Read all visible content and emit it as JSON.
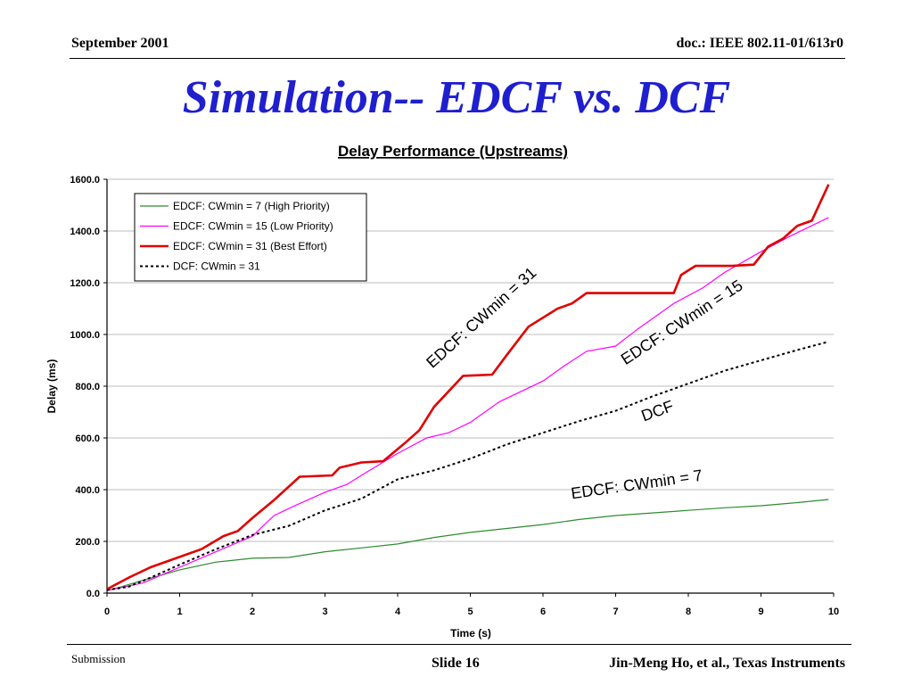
{
  "header": {
    "date": "September 2001",
    "doc": "doc.: IEEE 802.11-01/613r0"
  },
  "slide_title": "Simulation-- EDCF vs. DCF",
  "footer": {
    "submission": "Submission",
    "slide": "Slide 16",
    "author": "Jin-Meng Ho, et al., Texas Instruments"
  },
  "chart_data": {
    "type": "line",
    "title": "Delay Performance (Upstreams)",
    "xlabel": "Time (s)",
    "ylabel": "Delay (ms)",
    "xlim": [
      0,
      10
    ],
    "ylim": [
      0,
      1600
    ],
    "xticks": [
      "0",
      "1",
      "2",
      "3",
      "4",
      "5",
      "6",
      "7",
      "8",
      "9",
      "10"
    ],
    "yticks": [
      "0.0",
      "200.0",
      "400.0",
      "600.0",
      "800.0",
      "1000.0",
      "1200.0",
      "1400.0",
      "1600.0"
    ],
    "grid": "horizontal",
    "legend_position": "top-left",
    "series": [
      {
        "name": "EDCF: CWmin = 7 (High Priority)",
        "color": "#2e8b2e",
        "style": "solid",
        "points": [
          [
            0,
            10
          ],
          [
            0.2,
            25
          ],
          [
            0.5,
            50
          ],
          [
            1,
            90
          ],
          [
            1.5,
            120
          ],
          [
            2,
            135
          ],
          [
            2.5,
            138
          ],
          [
            3,
            160
          ],
          [
            3.5,
            175
          ],
          [
            4,
            190
          ],
          [
            4.5,
            215
          ],
          [
            5,
            235
          ],
          [
            5.5,
            250
          ],
          [
            6,
            265
          ],
          [
            6.5,
            285
          ],
          [
            7,
            300
          ],
          [
            7.5,
            310
          ],
          [
            8,
            320
          ],
          [
            8.5,
            330
          ],
          [
            9,
            338
          ],
          [
            9.5,
            350
          ],
          [
            9.93,
            362
          ]
        ]
      },
      {
        "name": "EDCF: CWmin = 15 (Low Priority)",
        "color": "#ff00ff",
        "style": "solid",
        "points": [
          [
            0,
            10
          ],
          [
            0.5,
            40
          ],
          [
            1,
            100
          ],
          [
            1.5,
            160
          ],
          [
            2,
            220
          ],
          [
            2.3,
            300
          ],
          [
            2.6,
            340
          ],
          [
            3,
            390
          ],
          [
            3.3,
            420
          ],
          [
            3.5,
            455
          ],
          [
            4,
            540
          ],
          [
            4.4,
            600
          ],
          [
            4.7,
            620
          ],
          [
            5,
            660
          ],
          [
            5.4,
            740
          ],
          [
            6,
            820
          ],
          [
            6.3,
            880
          ],
          [
            6.6,
            935
          ],
          [
            7,
            955
          ],
          [
            7.3,
            1020
          ],
          [
            7.8,
            1120
          ],
          [
            8.2,
            1180
          ],
          [
            8.5,
            1240
          ],
          [
            9,
            1320
          ],
          [
            9.4,
            1380
          ],
          [
            9.93,
            1452
          ]
        ]
      },
      {
        "name": "EDCF: CWmin = 31 (Best Effort)",
        "color": "#e00000",
        "style": "thick",
        "points": [
          [
            0,
            15
          ],
          [
            0.3,
            60
          ],
          [
            0.6,
            100
          ],
          [
            1,
            140
          ],
          [
            1.3,
            170
          ],
          [
            1.6,
            220
          ],
          [
            1.8,
            240
          ],
          [
            2,
            290
          ],
          [
            2.3,
            360
          ],
          [
            2.65,
            450
          ],
          [
            3.1,
            455
          ],
          [
            3.2,
            485
          ],
          [
            3.5,
            505
          ],
          [
            3.8,
            510
          ],
          [
            4.1,
            580
          ],
          [
            4.3,
            630
          ],
          [
            4.5,
            720
          ],
          [
            4.7,
            780
          ],
          [
            4.9,
            840
          ],
          [
            5.3,
            845
          ],
          [
            5.5,
            920
          ],
          [
            5.8,
            1030
          ],
          [
            6.2,
            1100
          ],
          [
            6.4,
            1120
          ],
          [
            6.6,
            1160
          ],
          [
            7.8,
            1160
          ],
          [
            7.9,
            1230
          ],
          [
            8.1,
            1265
          ],
          [
            8.6,
            1265
          ],
          [
            8.9,
            1270
          ],
          [
            9.1,
            1340
          ],
          [
            9.3,
            1370
          ],
          [
            9.5,
            1420
          ],
          [
            9.7,
            1440
          ],
          [
            9.93,
            1580
          ]
        ]
      },
      {
        "name": "DCF: CWmin = 31",
        "color": "#000000",
        "style": "dotted",
        "points": [
          [
            0,
            12
          ],
          [
            0.3,
            25
          ],
          [
            0.6,
            60
          ],
          [
            1,
            110
          ],
          [
            1.5,
            170
          ],
          [
            2,
            225
          ],
          [
            2.5,
            260
          ],
          [
            3,
            320
          ],
          [
            3.5,
            365
          ],
          [
            4,
            440
          ],
          [
            4.5,
            475
          ],
          [
            5,
            520
          ],
          [
            5.5,
            575
          ],
          [
            6,
            620
          ],
          [
            6.5,
            665
          ],
          [
            7,
            705
          ],
          [
            7.5,
            760
          ],
          [
            8,
            810
          ],
          [
            8.5,
            860
          ],
          [
            9,
            900
          ],
          [
            9.5,
            940
          ],
          [
            9.93,
            972
          ]
        ]
      }
    ],
    "annotations": [
      {
        "text": "EDCF: CWmin = 31",
        "x": 5.2,
        "y": 1050,
        "angle": -42
      },
      {
        "text": "EDCF: CWmin = 15",
        "x": 7.95,
        "y": 1030,
        "angle": -33
      },
      {
        "text": "DCF",
        "x": 7.6,
        "y": 685,
        "angle": -20
      },
      {
        "text": "EDCF: CWmin = 7",
        "x": 7.3,
        "y": 400,
        "angle": -8
      }
    ]
  }
}
